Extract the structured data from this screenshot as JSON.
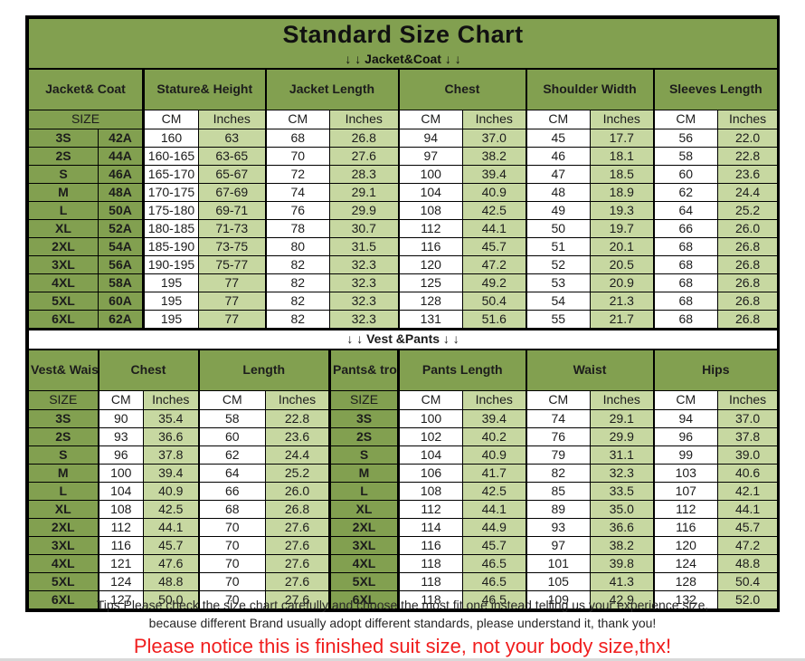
{
  "header": {
    "title": "Standard Size Chart",
    "jacket_section": "↓ ↓  Jacket&Coat ↓ ↓",
    "vest_section": "↓ ↓  Vest &Pants ↓ ↓"
  },
  "colors": {
    "header_green": "#82A050",
    "light_green": "#C7D8A1",
    "cell_white": "#FFFFFF",
    "border_black": "#000000",
    "notice_red": "#F01E1E"
  },
  "chart_data": [
    {
      "type": "table",
      "name": "jacket-coat-size-table",
      "column_groups": [
        "Jacket&\nCoat",
        "Stature&\nHeight",
        "Jacket\nLength",
        "Chest",
        "Shoulder\nWidth",
        "Sleeves\nLength"
      ],
      "size_header": "SIZE",
      "unit_headers": [
        "CM",
        "Inches"
      ],
      "rows": [
        [
          "3S",
          "42A",
          "160",
          "63",
          "68",
          "26.8",
          "94",
          "37.0",
          "45",
          "17.7",
          "56",
          "22.0"
        ],
        [
          "2S",
          "44A",
          "160-165",
          "63-65",
          "70",
          "27.6",
          "97",
          "38.2",
          "46",
          "18.1",
          "58",
          "22.8"
        ],
        [
          "S",
          "46A",
          "165-170",
          "65-67",
          "72",
          "28.3",
          "100",
          "39.4",
          "47",
          "18.5",
          "60",
          "23.6"
        ],
        [
          "M",
          "48A",
          "170-175",
          "67-69",
          "74",
          "29.1",
          "104",
          "40.9",
          "48",
          "18.9",
          "62",
          "24.4"
        ],
        [
          "L",
          "50A",
          "175-180",
          "69-71",
          "76",
          "29.9",
          "108",
          "42.5",
          "49",
          "19.3",
          "64",
          "25.2"
        ],
        [
          "XL",
          "52A",
          "180-185",
          "71-73",
          "78",
          "30.7",
          "112",
          "44.1",
          "50",
          "19.7",
          "66",
          "26.0"
        ],
        [
          "2XL",
          "54A",
          "185-190",
          "73-75",
          "80",
          "31.5",
          "116",
          "45.7",
          "51",
          "20.1",
          "68",
          "26.8"
        ],
        [
          "3XL",
          "56A",
          "190-195",
          "75-77",
          "82",
          "32.3",
          "120",
          "47.2",
          "52",
          "20.5",
          "68",
          "26.8"
        ],
        [
          "4XL",
          "58A",
          "195",
          "77",
          "82",
          "32.3",
          "125",
          "49.2",
          "53",
          "20.9",
          "68",
          "26.8"
        ],
        [
          "5XL",
          "60A",
          "195",
          "77",
          "82",
          "32.3",
          "128",
          "50.4",
          "54",
          "21.3",
          "68",
          "26.8"
        ],
        [
          "6XL",
          "62A",
          "195",
          "77",
          "82",
          "32.3",
          "131",
          "51.6",
          "55",
          "21.7",
          "68",
          "26.8"
        ]
      ]
    },
    {
      "type": "table",
      "name": "vest-pants-size-table",
      "column_groups": [
        "Vest&\nWaistcoat",
        "Chest",
        "Length",
        "Pants&\ntrousers",
        "Pants\nLength",
        "Waist",
        "Hips"
      ],
      "size_header": "SIZE",
      "unit_headers": [
        "CM",
        "Inches"
      ],
      "rows": [
        [
          "3S",
          "90",
          "35.4",
          "58",
          "22.8",
          "3S",
          "100",
          "39.4",
          "74",
          "29.1",
          "94",
          "37.0"
        ],
        [
          "2S",
          "93",
          "36.6",
          "60",
          "23.6",
          "2S",
          "102",
          "40.2",
          "76",
          "29.9",
          "96",
          "37.8"
        ],
        [
          "S",
          "96",
          "37.8",
          "62",
          "24.4",
          "S",
          "104",
          "40.9",
          "79",
          "31.1",
          "99",
          "39.0"
        ],
        [
          "M",
          "100",
          "39.4",
          "64",
          "25.2",
          "M",
          "106",
          "41.7",
          "82",
          "32.3",
          "103",
          "40.6"
        ],
        [
          "L",
          "104",
          "40.9",
          "66",
          "26.0",
          "L",
          "108",
          "42.5",
          "85",
          "33.5",
          "107",
          "42.1"
        ],
        [
          "XL",
          "108",
          "42.5",
          "68",
          "26.8",
          "XL",
          "112",
          "44.1",
          "89",
          "35.0",
          "112",
          "44.1"
        ],
        [
          "2XL",
          "112",
          "44.1",
          "70",
          "27.6",
          "2XL",
          "114",
          "44.9",
          "93",
          "36.6",
          "116",
          "45.7"
        ],
        [
          "3XL",
          "116",
          "45.7",
          "70",
          "27.6",
          "3XL",
          "116",
          "45.7",
          "97",
          "38.2",
          "120",
          "47.2"
        ],
        [
          "4XL",
          "121",
          "47.6",
          "70",
          "27.6",
          "4XL",
          "118",
          "46.5",
          "101",
          "39.8",
          "124",
          "48.8"
        ],
        [
          "5XL",
          "124",
          "48.8",
          "70",
          "27.6",
          "5XL",
          "118",
          "46.5",
          "105",
          "41.3",
          "128",
          "50.4"
        ],
        [
          "6XL",
          "127",
          "50.0",
          "70",
          "27.6",
          "6XL",
          "118",
          "46.5",
          "109",
          "42.9",
          "132",
          "52.0"
        ]
      ]
    }
  ],
  "footer": {
    "tips_line1": "Tips:Please check the size chart carefully and choose the most fit one instead telling us your experience size,",
    "tips_line2": "because different Brand usually adopt different standards, please understand it, thank you!",
    "notice": "Please notice this is finished suit size, not your body size,thx!"
  }
}
